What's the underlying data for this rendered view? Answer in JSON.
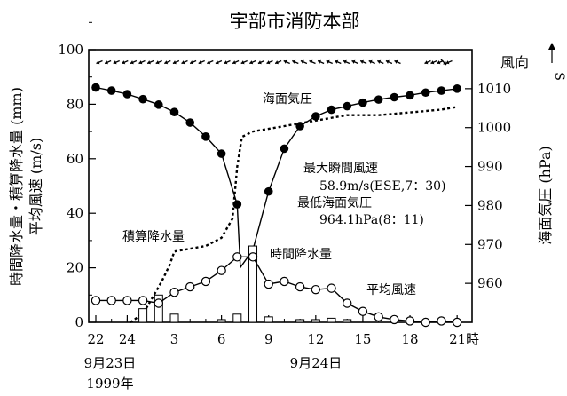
{
  "chart_data": {
    "type": "line",
    "title": "宇部市消防本部",
    "x": {
      "tick_labels": [
        "22",
        "24",
        "3",
        "6",
        "9",
        "12",
        "15",
        "18",
        "21時"
      ],
      "date_labels": [
        "9月23日",
        "1999年",
        "9月24日"
      ]
    },
    "y_left": {
      "label_line1": "時間降水量・積算降水量 (mm)",
      "label_line2": "平均風速 (m/s)",
      "range": [
        0,
        100
      ],
      "ticks": [
        "0",
        "20",
        "40",
        "60",
        "80",
        "100"
      ]
    },
    "y_right": {
      "label": "海面気圧 (hPa)",
      "range": [
        950,
        1020
      ],
      "ticks": [
        "960",
        "970",
        "980",
        "990",
        "1000",
        "1010"
      ],
      "wind_dir_label": "風向",
      "wind_dir_arrow_label": "S"
    },
    "series": [
      {
        "name": "海面気圧",
        "axis": "right",
        "style": "line-filled-dots",
        "x": [
          22,
          23,
          24,
          25,
          26,
          27,
          28,
          29,
          30,
          31,
          31.2,
          32,
          33,
          34,
          35,
          36,
          37,
          38,
          39,
          40,
          41,
          42,
          43,
          44,
          45
        ],
        "values": [
          1010.3,
          1009.5,
          1008.6,
          1007.3,
          1005.9,
          1004,
          1001.3,
          997.7,
          993.3,
          980.3,
          964.1,
          968.6,
          983.6,
          994.6,
          1000.4,
          1002.9,
          1004.6,
          1005.5,
          1006.4,
          1007.2,
          1007.8,
          1008.3,
          1009,
          1009.5,
          1010
        ]
      },
      {
        "name": "積算降水量",
        "axis": "left",
        "style": "dotted",
        "x": [
          24.2,
          24.7,
          25.2,
          25.7,
          26.2,
          26.7,
          27,
          28,
          29,
          30,
          30.7,
          31,
          31.3,
          32,
          34,
          36,
          38,
          40,
          42,
          44,
          45
        ],
        "values": [
          0,
          2,
          5,
          10,
          15,
          21,
          26,
          27,
          28,
          31,
          38,
          57,
          68,
          70,
          72,
          74,
          76,
          76,
          77,
          78,
          79
        ]
      },
      {
        "name": "時間降水量",
        "axis": "left",
        "style": "bars",
        "x": [
          25,
          26,
          27,
          28,
          29,
          30,
          31,
          32,
          33,
          34,
          35,
          36,
          37,
          38,
          39,
          40,
          41,
          42,
          43,
          44,
          45
        ],
        "values": [
          5,
          10,
          3,
          0,
          0,
          1,
          3,
          28,
          2,
          0,
          1,
          1,
          1.5,
          1,
          0,
          0,
          0,
          0,
          0,
          0,
          0
        ]
      },
      {
        "name": "平均風速",
        "axis": "left",
        "style": "line-open-dots",
        "x": [
          22,
          23,
          24,
          25,
          26,
          27,
          28,
          29,
          30,
          31,
          32,
          33,
          34,
          35,
          36,
          37,
          38,
          39,
          40,
          41,
          42,
          43,
          44,
          45
        ],
        "values": [
          8,
          8,
          8,
          8,
          7,
          11,
          13,
          15,
          19,
          24,
          24,
          14,
          15,
          13,
          12,
          12.5,
          7,
          4,
          2,
          1,
          0.5,
          0,
          0.5,
          0
        ]
      }
    ],
    "wind_direction": {
      "arrows": [
        {
          "dir": "left-down"
        },
        {
          "dir": "left-down"
        },
        {
          "dir": "left-down"
        },
        {
          "dir": "left-down"
        },
        {
          "dir": "left-down"
        },
        {
          "dir": "left-down"
        },
        {
          "dir": "left-down"
        },
        {
          "dir": "left-down"
        },
        {
          "dir": "left-down"
        },
        {
          "dir": "left-down"
        },
        {
          "dir": "left-down"
        },
        {
          "dir": "left-down"
        },
        {
          "dir": "left-down"
        },
        {
          "dir": "left-down"
        },
        {
          "dir": "left-down"
        },
        {
          "dir": "left-down"
        },
        {
          "dir": "left-down"
        },
        {
          "dir": "left-down"
        },
        {
          "dir": "left-down"
        },
        {
          "dir": "left-down"
        },
        {
          "dir": "left-down"
        },
        {
          "dir": "left-down"
        },
        {
          "dir": "left-up"
        },
        {
          "dir": "left-up"
        },
        {
          "dir": "left-up"
        },
        {
          "dir": "left-up"
        },
        {
          "dir": "left-up"
        },
        {
          "dir": "left-up"
        },
        {
          "dir": "left-up"
        },
        {
          "dir": "left-up"
        },
        {
          "dir": "left-up"
        },
        {
          "dir": "left-up"
        },
        {
          "dir": "left-up"
        },
        {
          "dir": "left-up"
        },
        {
          "dir": "left-up"
        },
        {
          "dir": "left-up"
        },
        {
          "dir": "left-down"
        },
        {
          "dir": "left-down"
        },
        {
          "dir": "left-down"
        },
        {
          "dir": "right-down"
        },
        {
          "dir": "left-down"
        }
      ]
    },
    "annotations": {
      "pressure_label": "海面気圧",
      "max_gust_title": "最大瞬間風速",
      "max_gust_value": "58.9m/s(ESE,7：30)",
      "min_pressure_title": "最低海面気圧",
      "min_pressure_value": "964.1hPa(8：11)",
      "accum_label": "積算降水量",
      "hourly_label": "時間降水量",
      "wind_label": "平均風速"
    },
    "grid": false,
    "legend": "none"
  }
}
